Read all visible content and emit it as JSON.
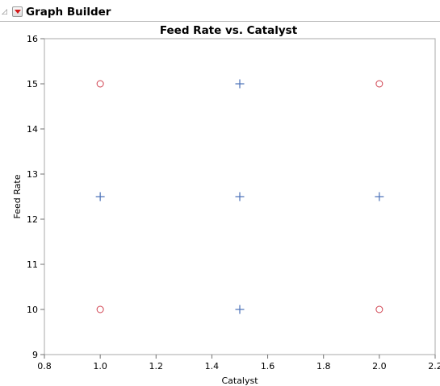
{
  "header": {
    "title": "Graph Builder",
    "disclosure_glyph": "◿"
  },
  "chart_data": {
    "type": "scatter",
    "title": "Feed Rate vs. Catalyst",
    "xlabel": "Catalyst",
    "ylabel": "Feed Rate",
    "xlim": [
      0.8,
      2.2
    ],
    "ylim": [
      9,
      16
    ],
    "xticks": [
      "0.8",
      "1.0",
      "1.2",
      "1.4",
      "1.6",
      "1.8",
      "2.0",
      "2.2"
    ],
    "yticks": [
      "9",
      "10",
      "11",
      "12",
      "13",
      "14",
      "15",
      "16"
    ],
    "grid": false,
    "series": [
      {
        "marker": "circle",
        "color": "#d0404e",
        "points": [
          [
            1.0,
            15
          ],
          [
            2.0,
            15
          ],
          [
            1.0,
            10
          ],
          [
            2.0,
            10
          ]
        ]
      },
      {
        "marker": "plus",
        "color": "#4a70b8",
        "points": [
          [
            1.5,
            15
          ],
          [
            1.0,
            12.5
          ],
          [
            1.5,
            12.5
          ],
          [
            2.0,
            12.5
          ],
          [
            1.5,
            10
          ]
        ]
      }
    ]
  }
}
